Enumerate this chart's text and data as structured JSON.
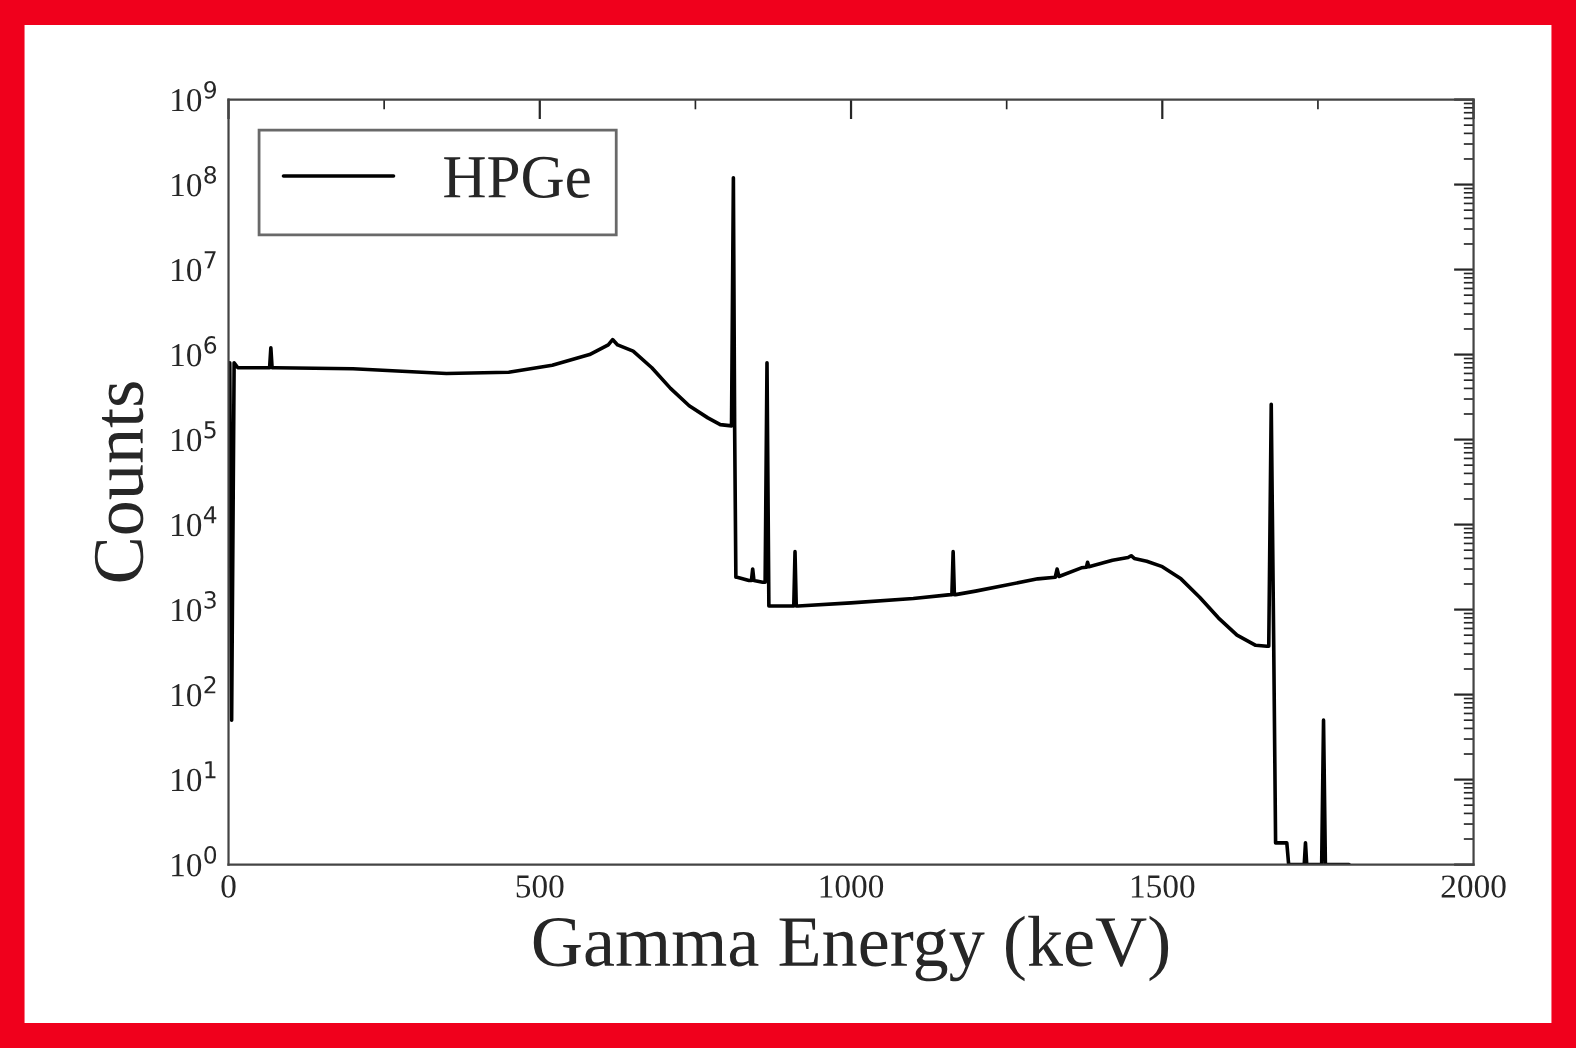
{
  "chart_data": {
    "type": "line",
    "xlabel": "Gamma Energy (keV)",
    "ylabel": "Counts",
    "log": "y",
    "xlim": [
      0,
      2000
    ],
    "xticks": [
      0,
      500,
      1000,
      1500,
      2000
    ],
    "ylim": [
      1,
      1000000000
    ],
    "yticks": [
      {
        "value": 1,
        "label": "10$^{0}$"
      },
      {
        "value": 10,
        "label": "10$^{1}$"
      },
      {
        "value": 100,
        "label": "10$^{2}$"
      },
      {
        "value": 1000,
        "label": "10$^{3}$"
      },
      {
        "value": 10000,
        "label": "10$^{4}$"
      },
      {
        "value": 100000,
        "label": "10$^{5}$"
      },
      {
        "value": 1000000,
        "label": "10$^{6}$"
      },
      {
        "value": 10000000,
        "label": "10$^{7}$"
      },
      {
        "value": 100000000,
        "label": "10$^{8}$"
      },
      {
        "value": 1000000000,
        "label": "10$^{9}$"
      }
    ],
    "legend": "top left",
    "grid": false,
    "marker": "none",
    "line_style": "solid",
    "series": [
      {
        "name": "HPGe",
        "color": "#000000",
        "x": [
          2,
          5,
          9,
          15,
          60,
          66,
          68,
          70,
          76,
          200,
          350,
          450,
          520,
          580,
          610,
          617,
          625,
          650,
          680,
          710,
          740,
          770,
          790,
          808,
          811,
          813,
          815,
          817,
          836,
          840,
          842,
          844,
          858,
          862,
          865,
          868,
          870,
          905,
          908,
          910,
          912,
          915,
          1000,
          1100,
          1160,
          1162,
          1164,
          1166,
          1168,
          1200,
          1300,
          1328,
          1331,
          1334,
          1370,
          1378,
          1380,
          1382,
          1420,
          1445,
          1450,
          1455,
          1475,
          1500,
          1530,
          1560,
          1590,
          1620,
          1650,
          1668,
          1671,
          1675,
          1679,
          1682,
          1700,
          1703,
          1728,
          1730,
          1732,
          1756,
          1759,
          1762,
          1800
        ],
        "values": [
          800000,
          50,
          800000,
          700000,
          700000,
          700000,
          1200000,
          700000,
          700000,
          680000,
          600000,
          620000,
          750000,
          1000000,
          1300000,
          1500000,
          1300000,
          1100000,
          700000,
          400000,
          250000,
          180000,
          150000,
          145000,
          120000000,
          145000,
          2400,
          2400,
          2200,
          2200,
          3000,
          2200,
          2100,
          2100,
          800000,
          1100,
          1100,
          1100,
          1100,
          4800,
          1100,
          1100,
          1200,
          1350,
          1500,
          1500,
          4800,
          1500,
          1500,
          1650,
          2300,
          2400,
          3000,
          2450,
          3100,
          3150,
          3600,
          3200,
          3800,
          4100,
          4300,
          4000,
          3700,
          3200,
          2300,
          1400,
          800,
          500,
          380,
          370,
          370,
          260000,
          370,
          1.8,
          1.8,
          1,
          1,
          1.8,
          1,
          1,
          50,
          1,
          1
        ]
      }
    ]
  }
}
